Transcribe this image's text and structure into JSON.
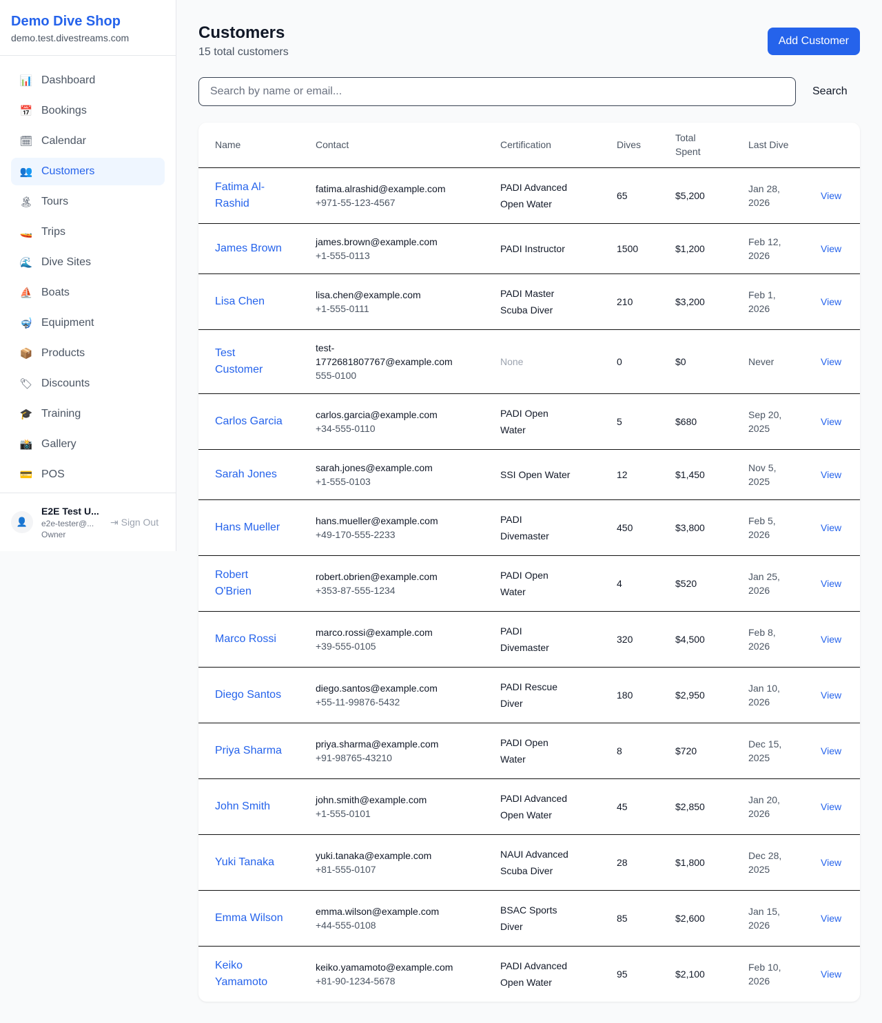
{
  "sidebar": {
    "shop_name": "Demo Dive Shop",
    "domain": "demo.test.divestreams.com",
    "items": [
      {
        "icon": "📊",
        "label": "Dashboard"
      },
      {
        "icon": "📅",
        "label": "Bookings"
      },
      {
        "icon": "🗓",
        "label": "Calendar"
      },
      {
        "icon": "👥",
        "label": "Customers",
        "active": true
      },
      {
        "icon": "🏝",
        "label": "Tours"
      },
      {
        "icon": "🚤",
        "label": "Trips"
      },
      {
        "icon": "🌊",
        "label": "Dive Sites"
      },
      {
        "icon": "⛵",
        "label": "Boats"
      },
      {
        "icon": "🤿",
        "label": "Equipment"
      },
      {
        "icon": "📦",
        "label": "Products"
      },
      {
        "icon": "🏷",
        "label": "Discounts"
      },
      {
        "icon": "🎓",
        "label": "Training"
      },
      {
        "icon": "📸",
        "label": "Gallery"
      },
      {
        "icon": "💳",
        "label": "POS"
      }
    ],
    "user": {
      "name": "E2E Test U...",
      "email": "e2e-tester@...",
      "role": "Owner",
      "sign_out": "Sign Out"
    }
  },
  "header": {
    "title": "Customers",
    "subtitle": "15 total customers",
    "add_button": "Add Customer"
  },
  "search": {
    "placeholder": "Search by name or email...",
    "button": "Search"
  },
  "table": {
    "columns": [
      "Name",
      "Contact",
      "Certification",
      "Dives",
      "Total Spent",
      "Last Dive"
    ],
    "view_label": "View",
    "rows": [
      {
        "name": "Fatima Al-Rashid",
        "email": "fatima.alrashid@example.com",
        "phone": "+971-55-123-4567",
        "cert": "PADI Advanced Open Water",
        "dives": "65",
        "spent": "$5,200",
        "last": "Jan 28, 2026"
      },
      {
        "name": "James Brown",
        "email": "james.brown@example.com",
        "phone": "+1-555-0113",
        "cert": "PADI Instructor",
        "dives": "1500",
        "spent": "$1,200",
        "last": "Feb 12, 2026"
      },
      {
        "name": "Lisa Chen",
        "email": "lisa.chen@example.com",
        "phone": "+1-555-0111",
        "cert": "PADI Master Scuba Diver",
        "dives": "210",
        "spent": "$3,200",
        "last": "Feb 1, 2026"
      },
      {
        "name": "Test Customer",
        "email": "test-1772681807767@example.com",
        "phone": "555-0100",
        "cert": "None",
        "dives": "0",
        "spent": "$0",
        "last": "Never"
      },
      {
        "name": "Carlos Garcia",
        "email": "carlos.garcia@example.com",
        "phone": "+34-555-0110",
        "cert": "PADI Open Water",
        "dives": "5",
        "spent": "$680",
        "last": "Sep 20, 2025"
      },
      {
        "name": "Sarah Jones",
        "email": "sarah.jones@example.com",
        "phone": "+1-555-0103",
        "cert": "SSI Open Water",
        "dives": "12",
        "spent": "$1,450",
        "last": "Nov 5, 2025"
      },
      {
        "name": "Hans Mueller",
        "email": "hans.mueller@example.com",
        "phone": "+49-170-555-2233",
        "cert": "PADI Divemaster",
        "dives": "450",
        "spent": "$3,800",
        "last": "Feb 5, 2026"
      },
      {
        "name": "Robert O'Brien",
        "email": "robert.obrien@example.com",
        "phone": "+353-87-555-1234",
        "cert": "PADI Open Water",
        "dives": "4",
        "spent": "$520",
        "last": "Jan 25, 2026"
      },
      {
        "name": "Marco Rossi",
        "email": "marco.rossi@example.com",
        "phone": "+39-555-0105",
        "cert": "PADI Divemaster",
        "dives": "320",
        "spent": "$4,500",
        "last": "Feb 8, 2026"
      },
      {
        "name": "Diego Santos",
        "email": "diego.santos@example.com",
        "phone": "+55-11-99876-5432",
        "cert": "PADI Rescue Diver",
        "dives": "180",
        "spent": "$2,950",
        "last": "Jan 10, 2026"
      },
      {
        "name": "Priya Sharma",
        "email": "priya.sharma@example.com",
        "phone": "+91-98765-43210",
        "cert": "PADI Open Water",
        "dives": "8",
        "spent": "$720",
        "last": "Dec 15, 2025"
      },
      {
        "name": "John Smith",
        "email": "john.smith@example.com",
        "phone": "+1-555-0101",
        "cert": "PADI Advanced Open Water",
        "dives": "45",
        "spent": "$2,850",
        "last": "Jan 20, 2026"
      },
      {
        "name": "Yuki Tanaka",
        "email": "yuki.tanaka@example.com",
        "phone": "+81-555-0107",
        "cert": "NAUI Advanced Scuba Diver",
        "dives": "28",
        "spent": "$1,800",
        "last": "Dec 28, 2025"
      },
      {
        "name": "Emma Wilson",
        "email": "emma.wilson@example.com",
        "phone": "+44-555-0108",
        "cert": "BSAC Sports Diver",
        "dives": "85",
        "spent": "$2,600",
        "last": "Jan 15, 2026"
      },
      {
        "name": "Keiko Yamamoto",
        "email": "keiko.yamamoto@example.com",
        "phone": "+81-90-1234-5678",
        "cert": "PADI Advanced Open Water",
        "dives": "95",
        "spent": "$2,100",
        "last": "Feb 10, 2026"
      }
    ]
  }
}
